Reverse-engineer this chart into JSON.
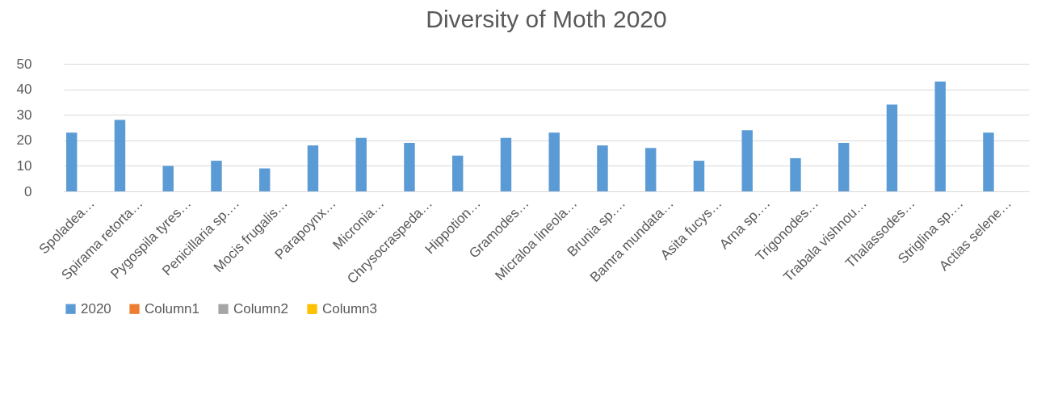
{
  "chart_data": {
    "type": "bar",
    "title": "Diversity of Moth 2020",
    "categories": [
      "Spoladea…",
      "Spirama retorta…",
      "Pygospila tyres…",
      "Penicillaria sp.…",
      "Mocis frugalis…",
      "Parapoynx…",
      "Micronia…",
      "Chrysocraspeda…",
      "Hippotion…",
      "Gramodes…",
      "Micraloa lineola…",
      "Brunia sp.…",
      "Bamra mundata…",
      "Asita fucys…",
      "Arna sp.…",
      "Trigonodes…",
      "Trabala vishnou…",
      "Thalassodes…",
      "Striglina sp.…",
      "Actias selene…"
    ],
    "series": [
      {
        "name": "2020",
        "color": "#5b9bd5",
        "values": [
          23,
          28,
          10,
          12,
          9,
          18,
          21,
          19,
          14,
          21,
          23,
          18,
          17,
          12,
          24,
          13,
          19,
          34,
          43,
          23
        ]
      },
      {
        "name": "Column1",
        "color": "#ed7d31",
        "values": [
          null,
          null,
          null,
          null,
          null,
          null,
          null,
          null,
          null,
          null,
          null,
          null,
          null,
          null,
          null,
          null,
          null,
          null,
          null,
          null
        ]
      },
      {
        "name": "Column2",
        "color": "#a5a5a5",
        "values": [
          null,
          null,
          null,
          null,
          null,
          null,
          null,
          null,
          null,
          null,
          null,
          null,
          null,
          null,
          null,
          null,
          null,
          null,
          null,
          null
        ]
      },
      {
        "name": "Column3",
        "color": "#ffc000",
        "values": [
          null,
          null,
          null,
          null,
          null,
          null,
          null,
          null,
          null,
          null,
          null,
          null,
          null,
          null,
          null,
          null,
          null,
          null,
          null,
          null
        ]
      }
    ],
    "ylim": [
      0,
      50
    ],
    "yticks": [
      0,
      10,
      20,
      30,
      40,
      50
    ],
    "grid": "y",
    "legend": "bottom"
  }
}
